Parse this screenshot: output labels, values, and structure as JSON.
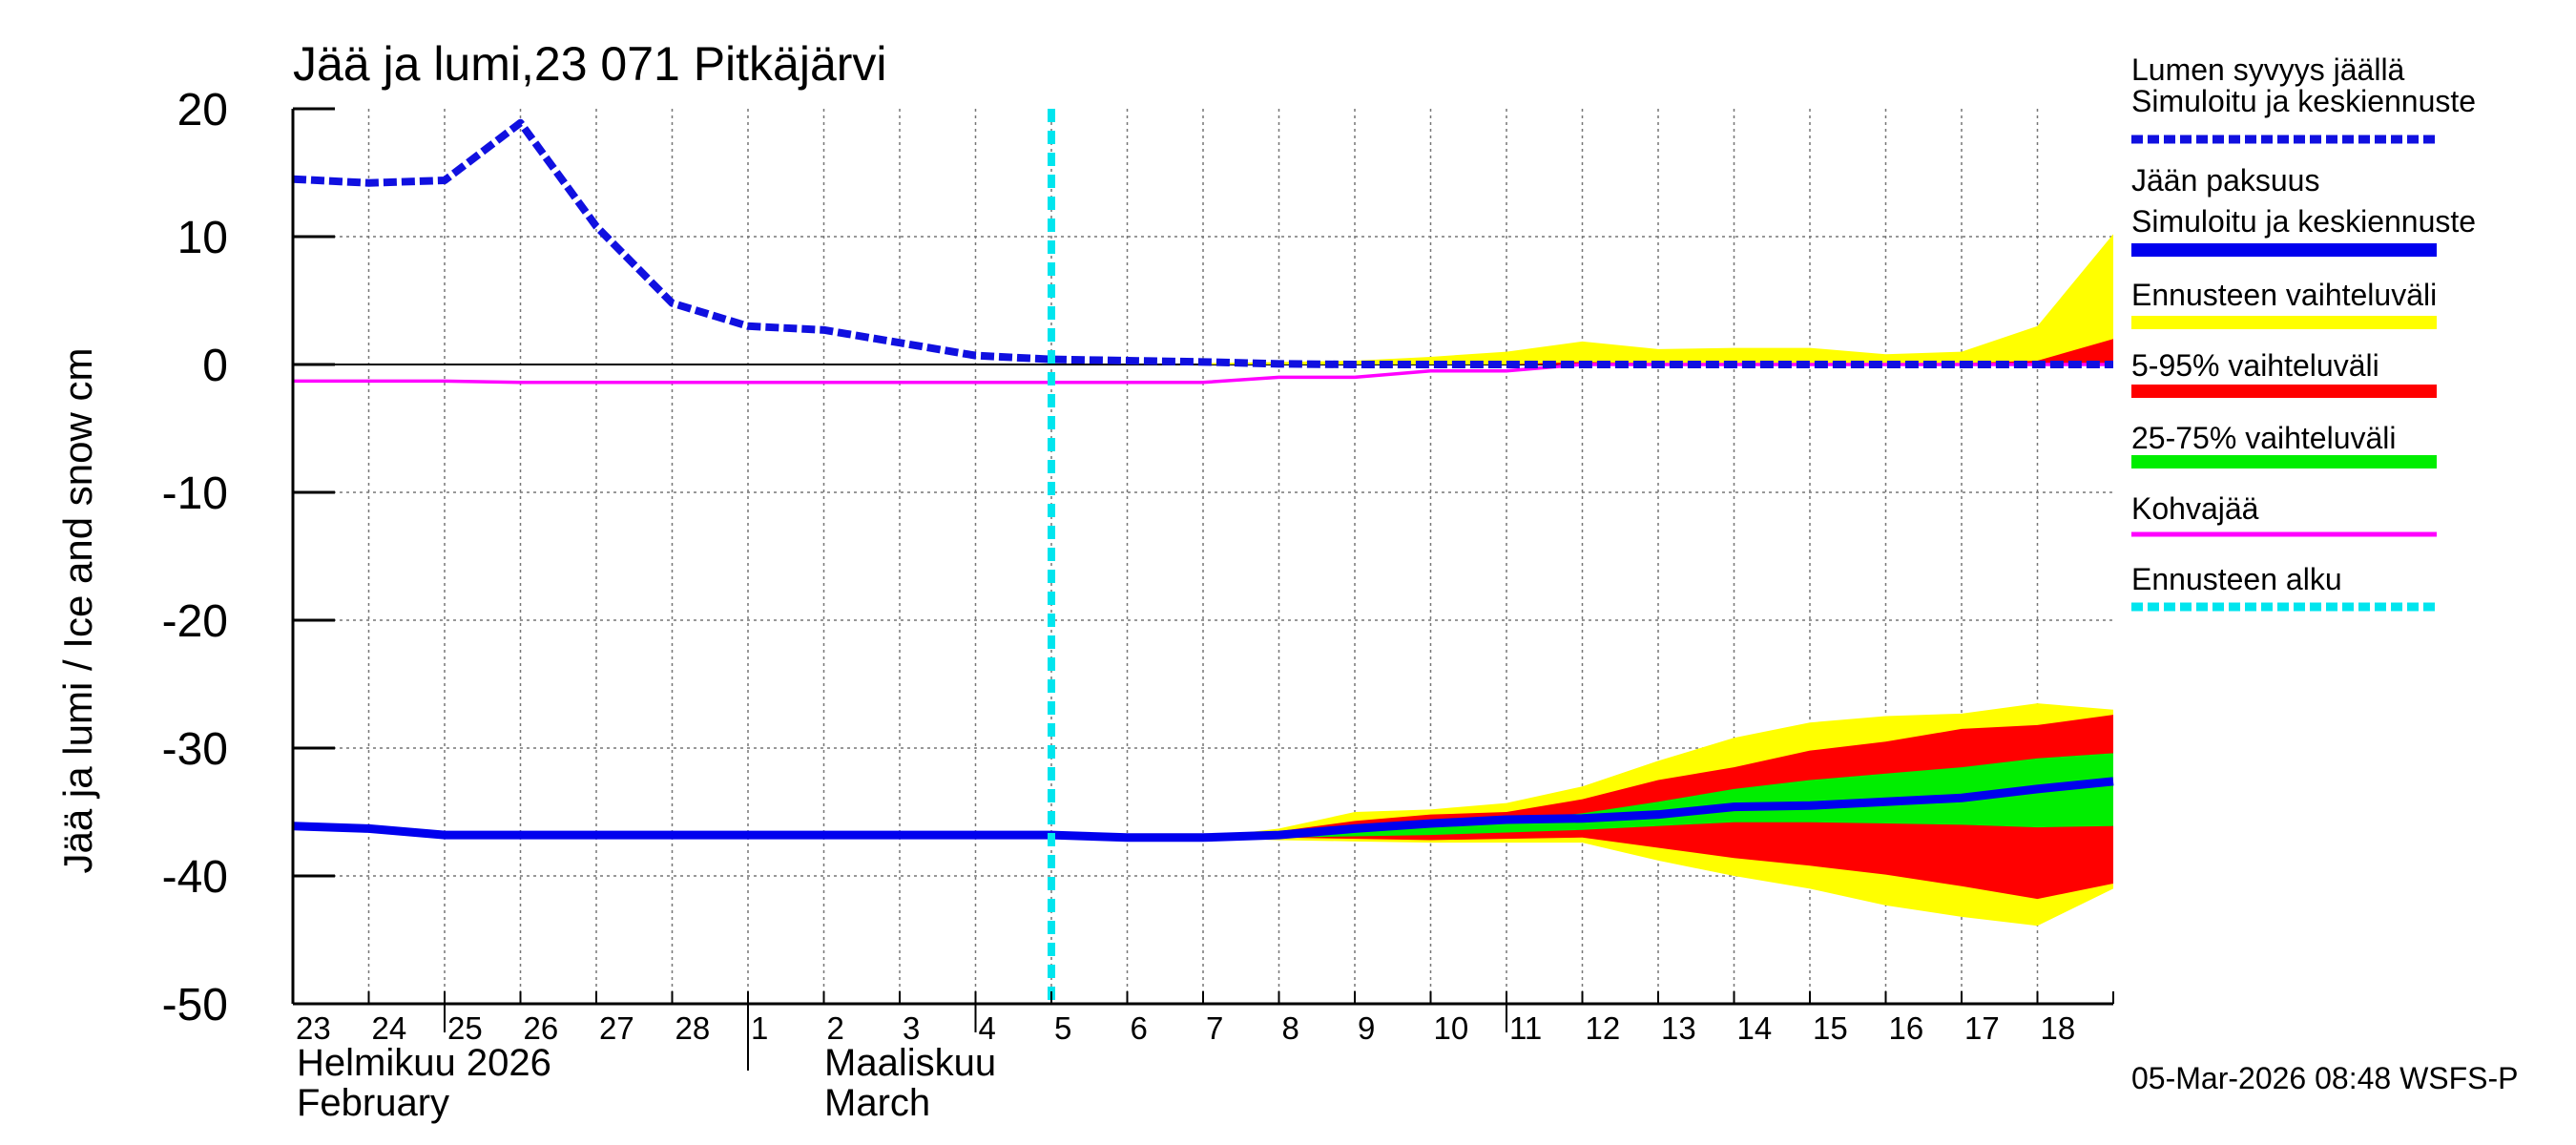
{
  "chart_data": {
    "type": "area",
    "title": "Jää ja lumi,23 071 Pitkäjärvi",
    "ylabel": "Jää ja lumi / Ice and snow    cm",
    "ylim": [
      -50,
      20
    ],
    "yticks": [
      20,
      10,
      0,
      -10,
      -20,
      -30,
      -40,
      -50
    ],
    "x_days": [
      "23",
      "24",
      "25",
      "26",
      "27",
      "28",
      "1",
      "2",
      "3",
      "4",
      "5",
      "6",
      "7",
      "8",
      "9",
      "10",
      "11",
      "12",
      "13",
      "14",
      "15",
      "16",
      "17",
      "18"
    ],
    "x_range": [
      0,
      24
    ],
    "month_labels": [
      {
        "line1": "Helmikuu  2026",
        "line2": "February",
        "at": 0
      },
      {
        "line1": "Maaliskuu",
        "line2": "March",
        "at": 6
      }
    ],
    "forecast_start": 10,
    "footer": "05-Mar-2026 08:48 WSFS-P",
    "colors": {
      "snow": "#1010e0",
      "ice": "#0000ee",
      "range_full": "#ffff00",
      "range_5_95": "#ff0000",
      "range_25_75": "#00ee00",
      "slush": "#ff00ff",
      "forecast": "#00e5ee"
    },
    "legend": [
      {
        "line1": "Lumen syvyys jäällä",
        "line2": "Simuloitu ja keskiennuste",
        "style": "dash",
        "color_key": "snow"
      },
      {
        "line1": "Jään paksuus",
        "line2": "Simuloitu ja keskiennuste",
        "style": "solid",
        "color_key": "ice"
      },
      {
        "line1": "Ennusteen vaihteluväli",
        "line2": "",
        "style": "solid",
        "color_key": "range_full"
      },
      {
        "line1": "5-95% vaihteluväli",
        "line2": "",
        "style": "solid",
        "color_key": "range_5_95"
      },
      {
        "line1": "25-75% vaihteluväli",
        "line2": "",
        "style": "solid",
        "color_key": "range_25_75"
      },
      {
        "line1": "Kohvajää",
        "line2": "",
        "style": "thin",
        "color_key": "slush"
      },
      {
        "line1": "Ennusteen alku",
        "line2": "",
        "style": "dash",
        "color_key": "forecast"
      }
    ],
    "series": [
      {
        "name": "Lumen syvyys jäällä",
        "x": [
          0,
          1,
          2,
          3,
          4,
          5,
          6,
          7,
          8,
          9,
          10,
          11,
          12,
          13,
          14,
          15,
          16,
          17,
          18,
          19,
          20,
          21,
          22,
          23,
          24
        ],
        "values": [
          14.5,
          14.2,
          14.4,
          18.9,
          10.8,
          4.8,
          3.0,
          2.7,
          1.7,
          0.7,
          0.4,
          0.3,
          0.2,
          0.05,
          0,
          0,
          0,
          0,
          0,
          0,
          0,
          0,
          0,
          0,
          0
        ]
      },
      {
        "name": "Jään paksuus",
        "x": [
          0,
          1,
          2,
          3,
          4,
          5,
          6,
          7,
          8,
          9,
          10,
          11,
          12,
          13,
          14,
          15,
          16,
          17,
          18,
          19,
          20,
          21,
          22,
          23,
          24
        ],
        "values": [
          -36.1,
          -36.3,
          -36.8,
          -36.8,
          -36.8,
          -36.8,
          -36.8,
          -36.8,
          -36.8,
          -36.8,
          -36.8,
          -37.0,
          -37.0,
          -36.8,
          -36.3,
          -35.9,
          -35.6,
          -35.5,
          -35.2,
          -34.6,
          -34.5,
          -34.2,
          -33.9,
          -33.2,
          -32.6
        ]
      },
      {
        "name": "Kohvajää",
        "x": [
          0,
          2,
          3,
          5,
          7,
          10,
          12,
          13,
          14,
          15,
          16,
          17,
          18,
          19,
          20,
          21,
          22,
          23,
          24
        ],
        "values": [
          -1.3,
          -1.3,
          -1.4,
          -1.4,
          -1.4,
          -1.4,
          -1.4,
          -1.0,
          -1.0,
          -0.5,
          -0.5,
          0,
          0,
          0,
          0,
          0,
          0,
          0,
          0
        ]
      }
    ],
    "ice_bands_x": [
      12,
      13,
      14,
      15,
      16,
      17,
      18,
      19,
      20,
      21,
      22,
      23,
      24
    ],
    "ice_bands": {
      "full_high": [
        -37.0,
        -36.3,
        -35.0,
        -34.8,
        -34.3,
        -33.0,
        -31.0,
        -29.2,
        -28.0,
        -27.5,
        -27.3,
        -26.5,
        -27.0
      ],
      "full_low": [
        -37.0,
        -37.2,
        -37.3,
        -37.4,
        -37.4,
        -37.4,
        -38.8,
        -40.0,
        -41.0,
        -42.3,
        -43.2,
        -43.9,
        -41.0
      ],
      "p95": [
        -37.0,
        -36.5,
        -35.7,
        -35.2,
        -35.0,
        -34.0,
        -32.5,
        -31.5,
        -30.2,
        -29.5,
        -28.5,
        -28.2,
        -27.4
      ],
      "p5": [
        -37.0,
        -37.0,
        -37.1,
        -37.2,
        -37.1,
        -37.0,
        -37.8,
        -38.6,
        -39.2,
        -39.9,
        -40.8,
        -41.8,
        -40.6
      ],
      "p75": [
        -37.0,
        -36.9,
        -36.4,
        -36.1,
        -35.7,
        -35.1,
        -34.2,
        -33.2,
        -32.5,
        -32.0,
        -31.5,
        -30.8,
        -30.4
      ],
      "p25": [
        -37.0,
        -37.0,
        -36.9,
        -36.8,
        -36.6,
        -36.4,
        -36.1,
        -35.8,
        -35.8,
        -35.9,
        -36.0,
        -36.2,
        -36.1
      ]
    },
    "snow_bands_x": [
      12,
      13,
      14,
      15,
      16,
      17,
      18,
      19,
      20,
      21,
      22,
      23,
      24
    ],
    "snow_bands": {
      "full_high": [
        0.1,
        0.2,
        0.3,
        0.6,
        1.0,
        1.8,
        1.2,
        1.3,
        1.3,
        0.8,
        1.0,
        3.0,
        10.2
      ],
      "p95": [
        0,
        0,
        0,
        0,
        0,
        0.2,
        0.1,
        0.1,
        0.1,
        0.1,
        0.1,
        0.3,
        2.0
      ]
    }
  }
}
